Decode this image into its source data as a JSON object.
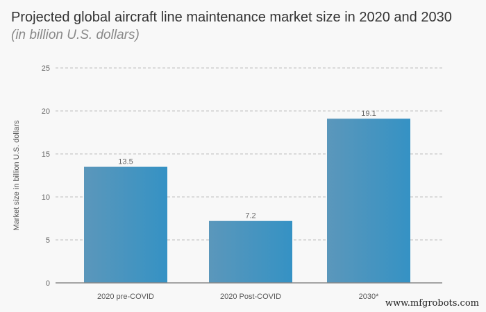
{
  "chart_data": {
    "type": "bar",
    "title": "Projected global aircraft line maintenance market size in 2020 and 2030",
    "subtitle": "(in billion U.S. dollars)",
    "ylabel": "Market size in billion U.S. dollars",
    "xlabel": "",
    "categories": [
      "2020 pre-COVID",
      "2020 Post-COVID",
      "2030*"
    ],
    "values": [
      13.5,
      7.2,
      19.1
    ],
    "data_labels": [
      "13.5",
      "7.2",
      "19.1"
    ],
    "ylim": [
      0,
      25
    ],
    "yticks": [
      0,
      5,
      10,
      15,
      20,
      25
    ],
    "grid": true,
    "bar_color_start": "#5b97bb",
    "bar_color_end": "#3592c4"
  },
  "watermark": "www.mfgrobots.com"
}
